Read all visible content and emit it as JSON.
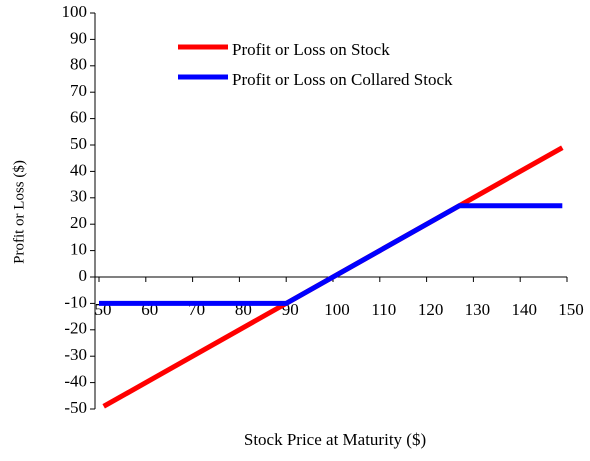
{
  "chart_data": {
    "type": "line",
    "x_label": "Stock Price at Maturity ($)",
    "y_label": "Profit or Loss ($)",
    "series": [
      {
        "name": "Profit or Loss on Stock",
        "color": "#ff0000",
        "x": [
          51,
          149
        ],
        "values": [
          -49,
          49
        ]
      },
      {
        "name": "Profit or Loss on Collared Stock",
        "color": "#0000ff",
        "x": [
          50,
          90,
          127,
          149
        ],
        "values": [
          -10,
          -10,
          27,
          27
        ]
      }
    ],
    "xlim": [
      50,
      150
    ],
    "xticks": [
      50,
      60,
      70,
      80,
      90,
      100,
      110,
      120,
      130,
      140,
      150
    ],
    "ylim": [
      -50,
      100
    ],
    "yticks": [
      -50,
      -40,
      -30,
      -20,
      -10,
      0,
      10,
      20,
      30,
      40,
      50,
      60,
      70,
      80,
      90,
      100
    ],
    "grid": false,
    "legend": "upper left"
  }
}
